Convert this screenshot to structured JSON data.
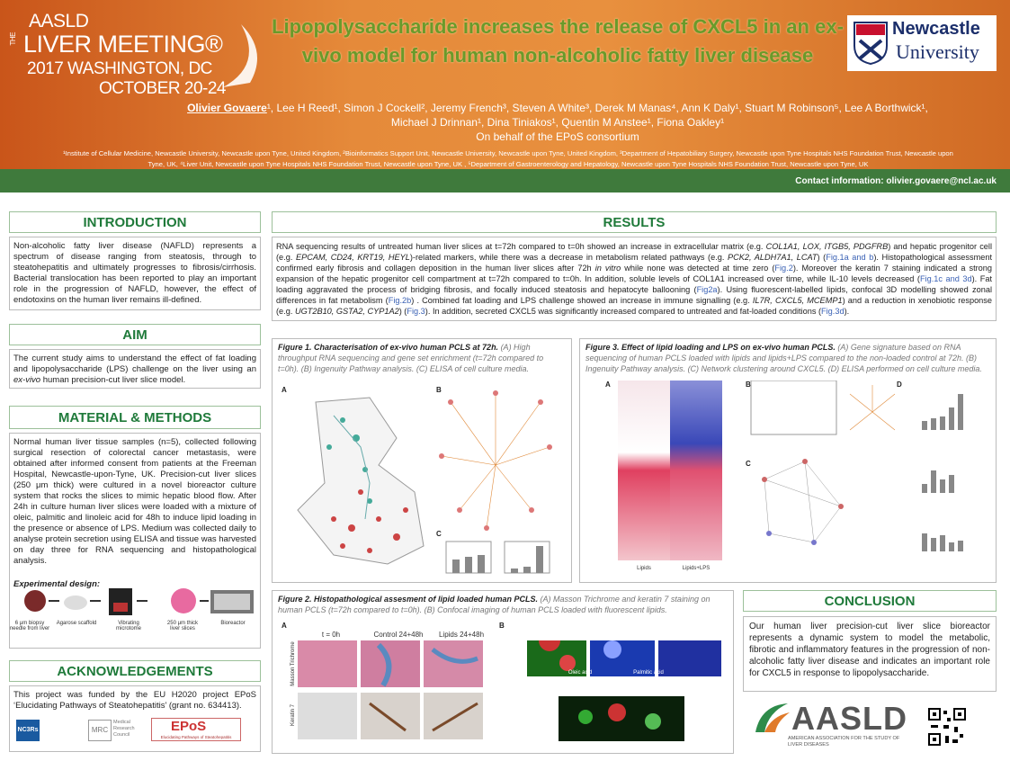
{
  "header": {
    "logo_lines": [
      "AASLD",
      "THE",
      "LIVER MEETING®",
      "2017 WASHINGTON, DC",
      "OCTOBER 20-24"
    ],
    "title": "Lipopolysaccharide increases the release of CXCL5 in an ex-vivo model for human non-alcoholic fatty liver disease",
    "authors": [
      {
        "text": "Olivier Govaere",
        "style": "bold-underline"
      },
      "¹, Lee H Reed¹, Simon J Cockell², Jeremy French³, Steven A White³, Derek M Manas⁴, Ann K Daly¹, Stuart M Robinson⁵, Lee A Borthwick¹, Michael J Drinnan¹, Dina Tiniakos¹, Quentin M Anstee¹, Fiona Oakley¹"
    ],
    "on_behalf": "On behalf of the EPoS consortium",
    "affiliations": "¹Institute of Cellular Medicine, Newcastle University, Newcastle upon Tyne, United Kingdom, ²Bioinformatics Support Unit, Newcastle University, Newcastle upon Tyne, United Kingdom, ³Department of Hepatobiliary Surgery, Newcastle upon Tyne Hospitals NHS Foundation Trust, Newcastle upon Tyne, UK, ⁴Liver Unit, Newcastle upon Tyne Hospitals NHS Foundation Trust, Newcastle upon Tyne, UK , ⁵Department of Gastroenterology and Hepatology, Newcastle upon Tyne Hospitals NHS Foundation Trust, Newcastle upon Tyne, UK",
    "university_logo": [
      "Newcastle",
      "University"
    ],
    "contact": "Contact information: olivier.govaere@ncl.ac.uk"
  },
  "introduction": {
    "heading": "INTRODUCTION",
    "text": [
      "Non-alcoholic fatty liver disease (NAFLD) represents a spectrum of disease ranging from steatosis, through to steatohepatitis and ultimately progresses to fibrosis/cirrhosis. Bacterial translocation has been reported to play an important role in the progression of NAFLD, however, the effect of endotoxins on the human liver remains ill-defined."
    ]
  },
  "aim": {
    "heading": "AIM",
    "text": [
      "The current study aims to understand the effect of fat loading and lipopolysaccharide (LPS) challenge on the liver using an ",
      {
        "text": "ex-vivo",
        "style": "italic"
      },
      " human precision-cut liver slice model."
    ]
  },
  "methods": {
    "heading": "MATERIAL & METHODS",
    "text": [
      "Normal human liver tissue samples (n=5), collected following surgical resection of colorectal cancer metastasis, were obtained after informed consent from patients at the Freeman Hospital, Newcastle-upon-Tyne, UK. Precision-cut liver slices (250 μm thick) were cultured in a novel bioreactor culture system that rocks the slices to mimic hepatic blood flow. After 24h in culture human liver slices were loaded with a mixture of oleic, palmitic and linoleic acid for 48h to induce lipid loading in the presence or absence of LPS. Medium was collected daily to analyse protein secretion using ELISA and tissue was harvested on day three for RNA sequencing and histopathological analysis."
    ],
    "design_label": "Experimental design:",
    "design_steps": [
      "6 μm biopsy needle from liver",
      "Agarose scaffold",
      "Vibrating microtome",
      "250 μm thick liver slices",
      "Bioreactor"
    ]
  },
  "acknowledgements": {
    "heading": "ACKNOWLEDGEMENTS",
    "text": [
      "This project was funded by the EU H2020 project EPoS ‘Elucidating Pathways of Steatohepatitis’ (grant no. 634413)."
    ],
    "logos": [
      "NC3Rs",
      "MRC",
      "Medical Research Council",
      "EPoS",
      "Elucidating Pathways of Steatohepatitis"
    ]
  },
  "results": {
    "heading": "RESULTS",
    "text": [
      "RNA sequencing results of untreated human liver slices at t=72h compared to t=0h showed an increase in extracellular matrix (e.g. ",
      {
        "text": "COL1A1, LOX, ITGB5, PDGFRB",
        "style": "italic"
      },
      ") and hepatic progenitor cell (e.g. ",
      {
        "text": "EPCAM, CD24, KRT19, HEYL",
        "style": "italic"
      },
      ")-related markers, while there was a decrease in metabolism related pathways (e.g. ",
      {
        "text": "PCK2, ALDH7A1, LCAT",
        "style": "italic"
      },
      ") (",
      {
        "text": "Fig.1a and b",
        "style": "link"
      },
      "). Histopathological assessment confirmed early fibrosis and collagen deposition in the human liver slices after 72h ",
      {
        "text": "in vitro",
        "style": "italic"
      },
      " while none was detected at time zero (",
      {
        "text": "Fig.2",
        "style": "link"
      },
      "). Moreover the keratin 7 staining indicated a strong expansion of the hepatic progenitor cell compartment at t=72h compared to t=0h. In addition, soluble levels of COL1A1 increased over time, while IL-10 levels decreased (",
      {
        "text": "Fig.1c and 3d",
        "style": "link"
      },
      "). Fat loading aggravated the process of bridging fibrosis, and focally induced steatosis and hepatocyte ballooning (",
      {
        "text": "Fig2a",
        "style": "link"
      },
      "). Using fluorescent-labelled lipids, confocal 3D modelling showed zonal differences in fat metabolism (",
      {
        "text": "Fig.2b",
        "style": "link"
      },
      ") . Combined fat loading and LPS challenge showed an increase in immune signalling (e.g. ",
      {
        "text": "IL7R, CXCL5, MCEMP1",
        "style": "italic"
      },
      ") and a reduction in xenobiotic response (e.g. ",
      {
        "text": "UGT2B10, GSTA2, CYP1A2",
        "style": "italic"
      },
      ") (",
      {
        "text": "Fig.3",
        "style": "link"
      },
      "). In addition, secreted CXCL5 was significantly increased compared to untreated and fat-loaded conditions (",
      {
        "text": "Fig.3d",
        "style": "link"
      },
      ")."
    ]
  },
  "figure1": {
    "caption": [
      {
        "text": "Figure 1. Characterisation of ex-vivo human PCLS at 72h.",
        "style": "bold"
      },
      " (A) High throughput RNA sequencing and gene set enrichment (t=72h compared to t=0h). (B) Ingenuity Pathway analysis. (C) ELISA of cell culture media."
    ],
    "panels": [
      "A",
      "B",
      "C"
    ]
  },
  "figure2": {
    "caption": [
      {
        "text": "Figure 2. Histopathological assesment of lipid loaded human PCLS.",
        "style": "bold"
      },
      " (A) Masson Trichrome and keratin 7 staining on human PCLS (t=72h compared to t=0h). (B) Confocal imaging of human PCLS loaded with fluorescent lipids."
    ],
    "panels": [
      "A",
      "B"
    ],
    "columns": [
      "t = 0h",
      "Control 24+48h",
      "Lipids 24+48h"
    ],
    "rows": [
      "Masson Trichrome",
      "Keratin 7"
    ],
    "confocal_labels": [
      "Oleic acid",
      "Palmitic acid"
    ]
  },
  "figure3": {
    "caption": [
      {
        "text": "Figure 3. Effect of lipid loading and LPS on ex-vivo human PCLS.",
        "style": "bold"
      },
      " (A) Gene signature based on RNA sequencing of human PCLS loaded with lipids and lipids+LPS compared to the non-loaded control at 72h. (B) Ingenuity Pathway analysis. (C) Network clustering around CXCL5. (D) ELISA performed on cell culture media."
    ],
    "panels": [
      "A",
      "B",
      "C",
      "D"
    ],
    "heatmap_columns": [
      "Lipids",
      "Lipids+LPS"
    ]
  },
  "conclusion": {
    "heading": "CONCLUSION",
    "text": [
      "Our human liver precision-cut liver slice bioreactor represents a dynamic system to model the metabolic, fibrotic and inflammatory features in the progression of non-alcoholic fatty liver disease and indicates an important role for CXCL5 in response to lipopolysaccharide."
    ]
  },
  "footer": {
    "aasld": "AASLD",
    "aasld_full": "AMERICAN ASSOCIATION FOR THE STUDY OF LIVER DISEASES"
  }
}
